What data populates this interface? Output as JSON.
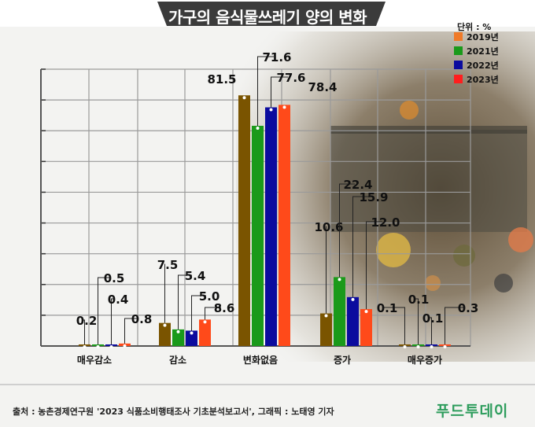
{
  "title": "가구의 음식물쓰레기 양의 변화",
  "unit": "단위 : %",
  "source": "출처 : 농촌경제연구원 '2023 식품소비행태조사 기초분석보고서', 그래픽 : 노태영 기자",
  "logo": "푸드투데이",
  "colors": {
    "title_bg": "#3b3b3b",
    "grid": "#9a9a9a",
    "axis": "#555555",
    "logo": "#2e9d5d"
  },
  "chart_data": {
    "type": "bar",
    "title": "가구의 음식물쓰레기 양의 변화",
    "unit": "%",
    "categories": [
      "매우감소",
      "감소",
      "변화없음",
      "증가",
      "매우증가"
    ],
    "series": [
      {
        "name": "2019년",
        "color": "#7a5400",
        "values": [
          0.2,
          7.5,
          81.5,
          10.6,
          0.1
        ]
      },
      {
        "name": "2021년",
        "color": "#1a9a1a",
        "values": [
          0.5,
          5.4,
          71.6,
          22.4,
          0.1
        ]
      },
      {
        "name": "2022년",
        "color": "#0b0b9e",
        "values": [
          0.4,
          5.0,
          77.6,
          15.9,
          0.1
        ]
      },
      {
        "name": "2023년",
        "color": "#ff4a1a",
        "values": [
          0.8,
          8.6,
          78.4,
          12.0,
          0.3
        ]
      }
    ],
    "legend_swatch_colors": [
      "#f07a28",
      "#1a9a1a",
      "#0b0b9e",
      "#ff1e1e"
    ],
    "labels": [
      [
        "0.2",
        "0.5",
        "0.4",
        "0.8"
      ],
      [
        "7.5",
        "5.4",
        "5.0",
        "8.6"
      ],
      [
        "81.5",
        "71.6",
        "77.6",
        "78.4"
      ],
      [
        "10.6",
        "22.4",
        "15.9",
        "12.0"
      ],
      [
        "0.1",
        "0.1",
        "0.1",
        "0.3"
      ]
    ],
    "ylim": [
      0,
      90
    ],
    "grid": true,
    "legend_position": "top-right"
  }
}
